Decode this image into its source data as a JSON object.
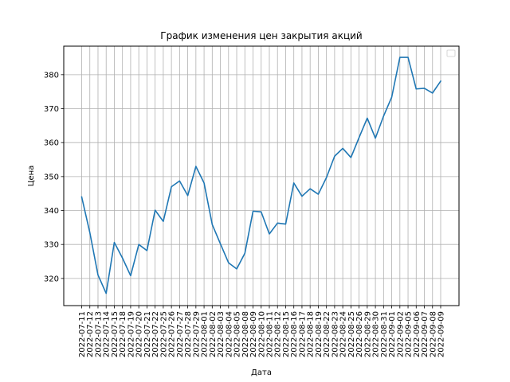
{
  "figure": {
    "background": "#ffffff"
  },
  "chart_data": {
    "type": "line",
    "title": "График изменения цен закрытия акций",
    "xlabel": "Дата",
    "ylabel": "Цена",
    "categories": [
      "2022-07-11",
      "2022-07-12",
      "2022-07-13",
      "2022-07-14",
      "2022-07-15",
      "2022-07-18",
      "2022-07-19",
      "2022-07-20",
      "2022-07-21",
      "2022-07-22",
      "2022-07-25",
      "2022-07-26",
      "2022-07-27",
      "2022-07-28",
      "2022-07-29",
      "2022-08-01",
      "2022-08-02",
      "2022-08-03",
      "2022-08-04",
      "2022-08-05",
      "2022-08-08",
      "2022-08-09",
      "2022-08-10",
      "2022-08-11",
      "2022-08-12",
      "2022-08-15",
      "2022-08-16",
      "2022-08-17",
      "2022-08-18",
      "2022-08-19",
      "2022-08-22",
      "2022-08-23",
      "2022-08-24",
      "2022-08-25",
      "2022-08-26",
      "2022-08-29",
      "2022-08-30",
      "2022-08-31",
      "2022-09-01",
      "2022-09-02",
      "2022-09-05",
      "2022-09-06",
      "2022-09-07",
      "2022-09-08",
      "2022-09-09"
    ],
    "xtick_labels": [
      "2022-07-11",
      "2022-07-12",
      "2022-07-13",
      "2022-07-14",
      "2022-07-15",
      "2022-07-18",
      "2022-07-19",
      "2022-07-20",
      "2022-07-21",
      "2022-07-22",
      "2022-07-25",
      "2022-07-26",
      "2022-07-27",
      "2022-07-28",
      "2022-07-29",
      "2022-08-01",
      "2022-08-02",
      "2022-08-03",
      "2022-08-04",
      "2022-08-05",
      "2022-08-08",
      "2022-08-09",
      "2022-08-10",
      "2022-08-11",
      "2022-08-12",
      "2022-08-15",
      "2022-08-16",
      "2022-08-17",
      "2022-08-18",
      "2022-08-19",
      "2022-08-22",
      "2022-08-23",
      "2022-08-24",
      "2022-08-25",
      "2022-08-26",
      "2022-08-29",
      "2022-08-30",
      "2022-08-31",
      "2022-09-01",
      "2022-09-02",
      "2022-09-05",
      "2022-09-06",
      "2022-09-07",
      "2022-09-08",
      "2022-09-09"
    ],
    "series": [
      {
        "color": "#1f77b4",
        "values": [
          344.0,
          333.5,
          321.0,
          315.6,
          330.6,
          326.0,
          320.8,
          330.0,
          328.2,
          340.1,
          336.8,
          347.0,
          348.7,
          344.4,
          353.0,
          348.1,
          335.9,
          330.2,
          324.6,
          322.8,
          327.4,
          339.8,
          339.6,
          333.1,
          336.3,
          336.0,
          348.1,
          344.2,
          346.4,
          344.8,
          349.7,
          356.0,
          358.3,
          355.6,
          361.5,
          367.2,
          361.3,
          367.8,
          373.4,
          385.1,
          385.1,
          375.8,
          376.0,
          374.6,
          378.1
        ]
      }
    ],
    "ylim": [
      312.0,
      388.4
    ],
    "yticks": [
      320,
      330,
      340,
      350,
      360,
      370,
      380
    ],
    "grid": true,
    "legend": {
      "placement": "top-right",
      "entries": []
    },
    "colors": {
      "line": "#1f77b4",
      "grid": "#b0b0b0",
      "axis": "#000000"
    }
  }
}
